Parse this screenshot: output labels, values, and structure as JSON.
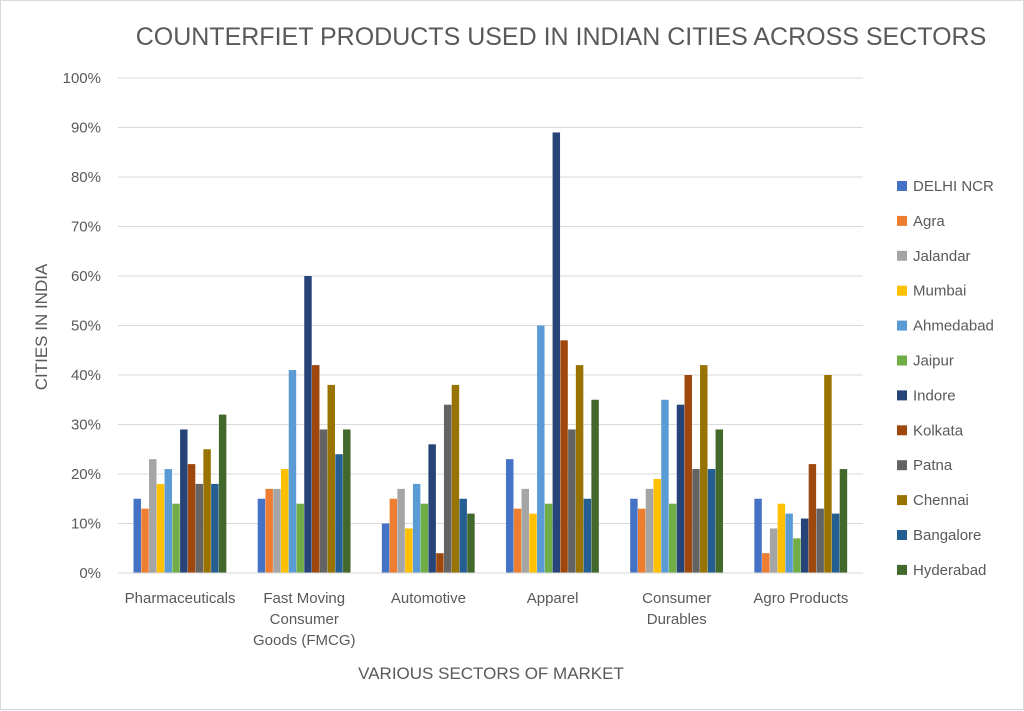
{
  "chart_data": {
    "type": "bar",
    "title": "COUNTERFIET PRODUCTS USED IN INDIAN CITIES ACROSS SECTORS",
    "xlabel": "VARIOUS SECTORS OF MARKET",
    "ylabel": "CITIES IN INDIA",
    "ylim": [
      0,
      100
    ],
    "yticks": [
      "0%",
      "10%",
      "20%",
      "30%",
      "40%",
      "50%",
      "60%",
      "70%",
      "80%",
      "90%",
      "100%"
    ],
    "grid": true,
    "legend_position": "right",
    "categories": [
      [
        "Pharmaceuticals"
      ],
      [
        "Fast Moving",
        "Consumer",
        "Goods (FMCG)"
      ],
      [
        "Automotive"
      ],
      [
        "Apparel"
      ],
      [
        "Consumer",
        "Durables"
      ],
      [
        "Agro Products"
      ]
    ],
    "series": [
      {
        "name": "DELHI NCR",
        "color": "#4472c4",
        "values": [
          15,
          15,
          10,
          23,
          15,
          15
        ]
      },
      {
        "name": "Agra",
        "color": "#ed7d31",
        "values": [
          13,
          17,
          15,
          13,
          13,
          4
        ]
      },
      {
        "name": "Jalandar",
        "color": "#a5a5a5",
        "values": [
          23,
          17,
          17,
          17,
          17,
          9
        ]
      },
      {
        "name": "Mumbai",
        "color": "#ffc000",
        "values": [
          18,
          21,
          9,
          12,
          19,
          14
        ]
      },
      {
        "name": "Ahmedabad",
        "color": "#5b9bd5",
        "values": [
          21,
          41,
          18,
          50,
          35,
          12
        ]
      },
      {
        "name": "Jaipur",
        "color": "#70ad47",
        "values": [
          14,
          14,
          14,
          14,
          14,
          7
        ]
      },
      {
        "name": "Indore",
        "color": "#264478",
        "values": [
          29,
          60,
          26,
          89,
          34,
          11
        ]
      },
      {
        "name": "Kolkata",
        "color": "#9e480e",
        "values": [
          22,
          42,
          4,
          47,
          40,
          22
        ]
      },
      {
        "name": "Patna",
        "color": "#636363",
        "values": [
          18,
          29,
          34,
          29,
          21,
          13
        ]
      },
      {
        "name": "Chennai",
        "color": "#997300",
        "values": [
          25,
          38,
          38,
          42,
          42,
          40
        ]
      },
      {
        "name": "Bangalore",
        "color": "#255e91",
        "values": [
          18,
          24,
          15,
          15,
          21,
          12
        ]
      },
      {
        "name": "Hyderabad",
        "color": "#43682b",
        "values": [
          32,
          29,
          12,
          35,
          29,
          21
        ]
      }
    ]
  }
}
